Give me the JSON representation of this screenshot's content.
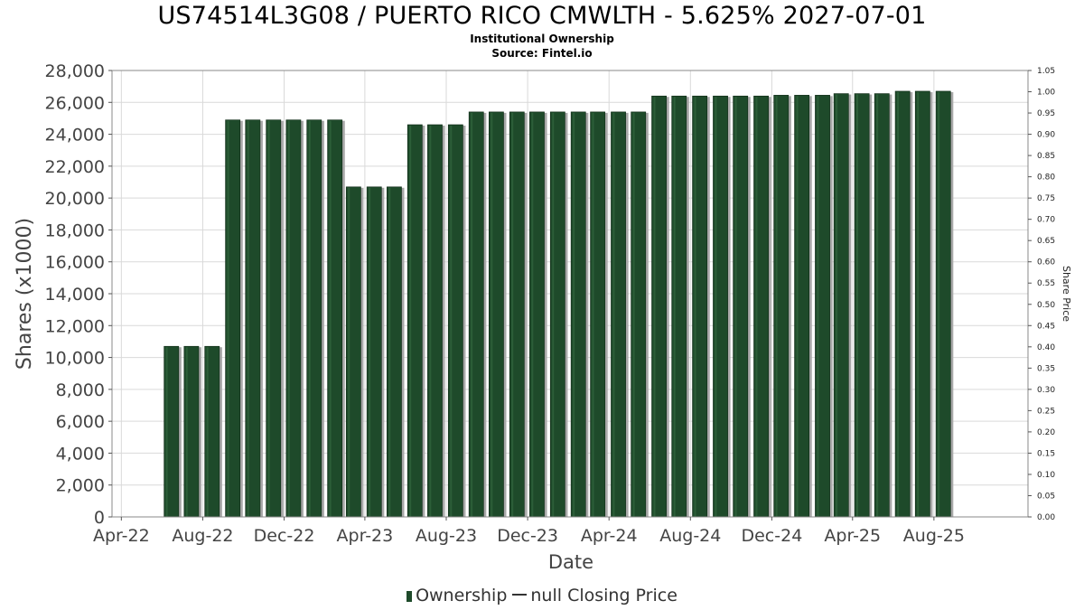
{
  "title": "US74514L3G08 / PUERTO RICO CMWLTH - 5.625% 2027-07-01",
  "subtitle": "Institutional Ownership",
  "source": "Source: Fintel.io",
  "legend": {
    "ownership": "Ownership",
    "price": "null Closing Price"
  },
  "colors": {
    "bar": "#1e4a2a",
    "bar_edge": "#0f2a16",
    "bar_shadow": "#a8a8a8",
    "grid": "#d9d9d9",
    "axis": "#888888"
  },
  "chart_data": {
    "type": "bar",
    "title": "US74514L3G08 / PUERTO RICO CMWLTH - 5.625% 2027-07-01",
    "xlabel": "Date",
    "ylabel": "Shares (x1000)",
    "y2label": "Share Price",
    "ylim": [
      0,
      28000
    ],
    "y_ticks": [
      "0",
      "2,000",
      "4,000",
      "6,000",
      "8,000",
      "10,000",
      "12,000",
      "14,000",
      "16,000",
      "18,000",
      "20,000",
      "22,000",
      "24,000",
      "26,000",
      "28,000"
    ],
    "y2lim": [
      0,
      1.05
    ],
    "y2_ticks": [
      "0.00",
      "0.05",
      "0.10",
      "0.15",
      "0.20",
      "0.25",
      "0.30",
      "0.35",
      "0.40",
      "0.45",
      "0.50",
      "0.55",
      "0.60",
      "0.65",
      "0.70",
      "0.75",
      "0.80",
      "0.85",
      "0.90",
      "0.95",
      "1.00",
      "1.05"
    ],
    "x_ticks": [
      {
        "label": "Apr-22",
        "date": "2022-04-01"
      },
      {
        "label": "Aug-22",
        "date": "2022-08-01"
      },
      {
        "label": "Dec-22",
        "date": "2022-12-01"
      },
      {
        "label": "Apr-23",
        "date": "2023-04-01"
      },
      {
        "label": "Aug-23",
        "date": "2023-08-01"
      },
      {
        "label": "Dec-23",
        "date": "2023-12-01"
      },
      {
        "label": "Apr-24",
        "date": "2024-04-01"
      },
      {
        "label": "Aug-24",
        "date": "2024-08-01"
      },
      {
        "label": "Dec-24",
        "date": "2024-12-01"
      },
      {
        "label": "Apr-25",
        "date": "2025-04-01"
      },
      {
        "label": "Aug-25",
        "date": "2025-08-01"
      }
    ],
    "x_range": [
      "2022-03-18",
      "2025-12-20"
    ],
    "grid": true,
    "legend_position": "bottom",
    "series": [
      {
        "name": "Ownership",
        "points": [
          {
            "date": "2022-06-15",
            "value": 10700
          },
          {
            "date": "2022-07-15",
            "value": 10700
          },
          {
            "date": "2022-08-15",
            "value": 10700
          },
          {
            "date": "2022-09-15",
            "value": 24900
          },
          {
            "date": "2022-10-15",
            "value": 24900
          },
          {
            "date": "2022-11-15",
            "value": 24900
          },
          {
            "date": "2022-12-15",
            "value": 24900
          },
          {
            "date": "2023-01-15",
            "value": 24900
          },
          {
            "date": "2023-02-15",
            "value": 24900
          },
          {
            "date": "2023-03-15",
            "value": 20700
          },
          {
            "date": "2023-04-15",
            "value": 20700
          },
          {
            "date": "2023-05-15",
            "value": 20700
          },
          {
            "date": "2023-06-15",
            "value": 24600
          },
          {
            "date": "2023-07-15",
            "value": 24600
          },
          {
            "date": "2023-08-15",
            "value": 24600
          },
          {
            "date": "2023-09-15",
            "value": 25400
          },
          {
            "date": "2023-10-15",
            "value": 25400
          },
          {
            "date": "2023-11-15",
            "value": 25400
          },
          {
            "date": "2023-12-15",
            "value": 25400
          },
          {
            "date": "2024-01-15",
            "value": 25400
          },
          {
            "date": "2024-02-15",
            "value": 25400
          },
          {
            "date": "2024-03-15",
            "value": 25400
          },
          {
            "date": "2024-04-15",
            "value": 25400
          },
          {
            "date": "2024-05-15",
            "value": 25400
          },
          {
            "date": "2024-06-15",
            "value": 26400
          },
          {
            "date": "2024-07-15",
            "value": 26400
          },
          {
            "date": "2024-08-15",
            "value": 26400
          },
          {
            "date": "2024-09-15",
            "value": 26400
          },
          {
            "date": "2024-10-15",
            "value": 26400
          },
          {
            "date": "2024-11-15",
            "value": 26400
          },
          {
            "date": "2024-12-15",
            "value": 26450
          },
          {
            "date": "2025-01-15",
            "value": 26450
          },
          {
            "date": "2025-02-15",
            "value": 26450
          },
          {
            "date": "2025-03-15",
            "value": 26550
          },
          {
            "date": "2025-04-15",
            "value": 26550
          },
          {
            "date": "2025-05-15",
            "value": 26550
          },
          {
            "date": "2025-06-15",
            "value": 26700
          },
          {
            "date": "2025-07-15",
            "value": 26700
          },
          {
            "date": "2025-08-15",
            "value": 26700
          }
        ]
      }
    ]
  }
}
